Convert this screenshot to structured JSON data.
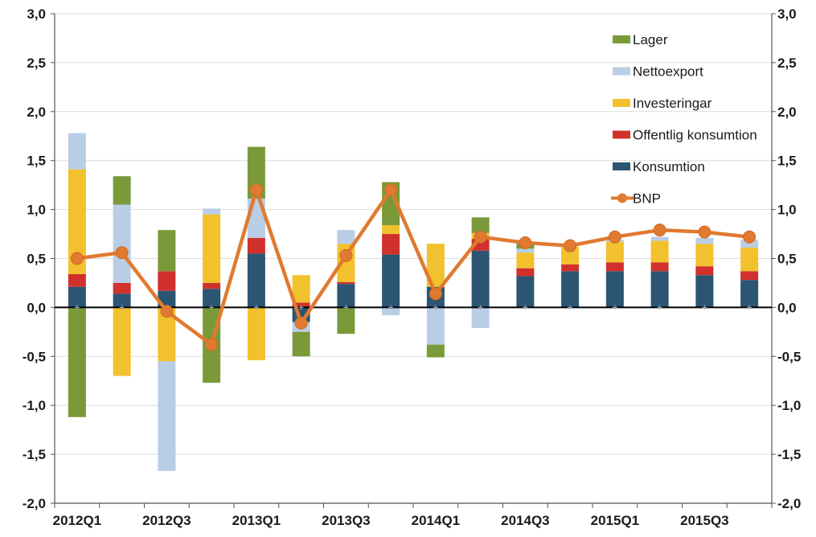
{
  "chart_data": {
    "type": "bar",
    "stacked": true,
    "categories": [
      "2012Q1",
      "2012Q2",
      "2012Q3",
      "2012Q4",
      "2013Q1",
      "2013Q2",
      "2013Q3",
      "2013Q4",
      "2014Q1",
      "2014Q2",
      "2014Q3",
      "2014Q4",
      "2015Q1",
      "2015Q2",
      "2015Q3",
      "2015Q4"
    ],
    "x_tick_labels": [
      "2012Q1",
      "2012Q3",
      "2013Q1",
      "2013Q3",
      "2014Q1",
      "2014Q3",
      "2015Q1",
      "2015Q3"
    ],
    "y_tick_labels": [
      "3,0",
      "2,5",
      "2,0",
      "1,5",
      "1,0",
      "0,5",
      "0,0",
      "-0,5",
      "-1,0",
      "-1,5",
      "-2,0"
    ],
    "ylim": [
      -2.0,
      3.0
    ],
    "grid": true,
    "legend_position": "top-right",
    "series": [
      {
        "name": "Konsumtion",
        "color": "#2b5573",
        "values": [
          0.21,
          0.14,
          0.17,
          0.19,
          0.55,
          -0.15,
          0.24,
          0.54,
          0.21,
          0.58,
          0.32,
          0.37,
          0.37,
          0.37,
          0.33,
          0.28
        ]
      },
      {
        "name": "Offentlig konsumtion",
        "color": "#d0312d",
        "values": [
          0.13,
          0.11,
          0.2,
          0.06,
          0.16,
          0.05,
          0.02,
          0.21,
          0.0,
          0.12,
          0.08,
          0.07,
          0.09,
          0.09,
          0.09,
          0.09
        ]
      },
      {
        "name": "Investeringar",
        "color": "#f2c12e",
        "values": [
          1.07,
          -0.7,
          -0.55,
          0.7,
          -0.54,
          0.28,
          0.39,
          0.09,
          0.44,
          0.06,
          0.16,
          0.18,
          0.21,
          0.22,
          0.23,
          0.24
        ]
      },
      {
        "name": "Nettoexport",
        "color": "#b9cde5",
        "values": [
          0.37,
          0.8,
          -1.12,
          0.06,
          0.4,
          -0.1,
          0.14,
          -0.08,
          -0.38,
          -0.21,
          0.04,
          0.0,
          0.02,
          0.04,
          0.06,
          0.08
        ]
      },
      {
        "name": "Lager",
        "color": "#7a9a3a",
        "values": [
          -1.12,
          0.29,
          0.42,
          -0.77,
          0.53,
          -0.25,
          -0.27,
          0.44,
          -0.13,
          0.16,
          0.05,
          0.0,
          0.0,
          0.0,
          0.0,
          0.0
        ]
      }
    ],
    "line_series": {
      "name": "BNP",
      "color": "#e07a30",
      "values": [
        0.5,
        0.56,
        -0.04,
        -0.38,
        1.2,
        -0.16,
        0.53,
        1.2,
        0.14,
        0.72,
        0.66,
        0.63,
        0.72,
        0.79,
        0.77,
        0.72
      ]
    },
    "legend_order": [
      "Lager",
      "Nettoexport",
      "Investeringar",
      "Offentlig konsumtion",
      "Konsumtion",
      "BNP"
    ]
  }
}
